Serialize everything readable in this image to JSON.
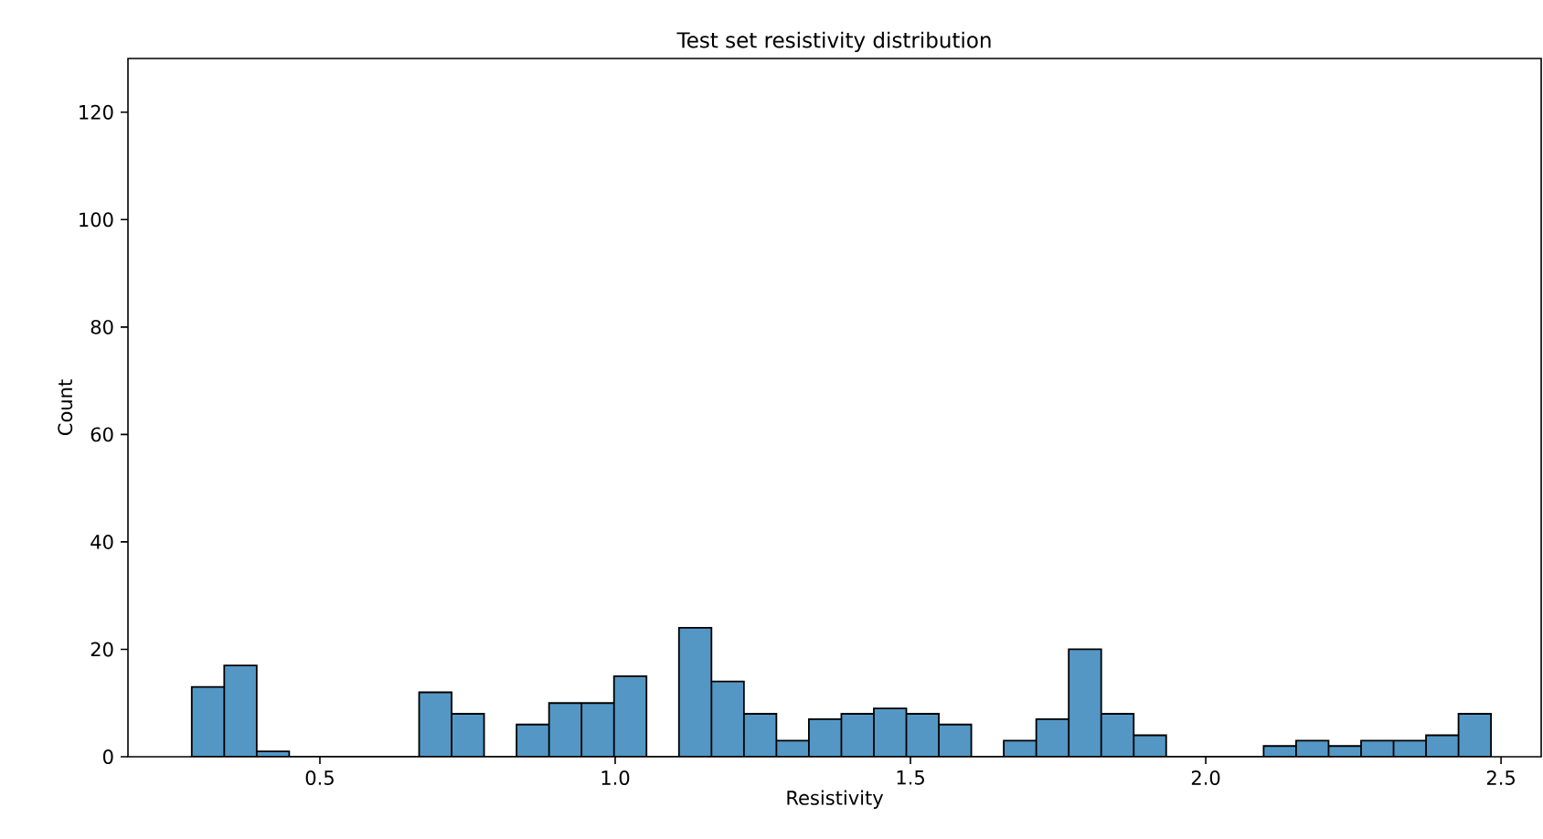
{
  "chart_data": {
    "type": "histogram",
    "title": "Test set resistivity distribution",
    "xlabel": "Resistivity",
    "ylabel": "Count",
    "bins": [
      0.283,
      0.338,
      0.393,
      0.448,
      0.503,
      0.558,
      0.613,
      0.668,
      0.723,
      0.778,
      0.833,
      0.888,
      0.943,
      0.998,
      1.053,
      1.108,
      1.163,
      1.218,
      1.273,
      1.328,
      1.383,
      1.438,
      1.493,
      1.548,
      1.603,
      1.658,
      1.713,
      1.768,
      1.823,
      1.878,
      1.933,
      1.988,
      2.043,
      2.098,
      2.153,
      2.208,
      2.263,
      2.318,
      2.373,
      2.428,
      2.483
    ],
    "values": [
      13,
      17,
      1,
      0,
      0,
      0,
      0,
      12,
      8,
      0,
      6,
      10,
      10,
      15,
      0,
      24,
      14,
      8,
      3,
      7,
      8,
      9,
      8,
      6,
      0,
      3,
      7,
      20,
      8,
      4,
      0,
      0,
      0,
      2,
      3,
      2,
      3,
      3,
      4,
      8
    ],
    "color": "#5497c5",
    "xlim": [
      0.175,
      2.568
    ],
    "ylim": [
      0,
      130
    ],
    "xticks": [
      0.5,
      {
        "value": 1,
        "label": "1.0"
      },
      1.5,
      {
        "value": 2,
        "label": "2.0"
      },
      2.5
    ],
    "yticks": [
      0,
      20,
      40,
      60,
      80,
      100,
      120
    ]
  }
}
